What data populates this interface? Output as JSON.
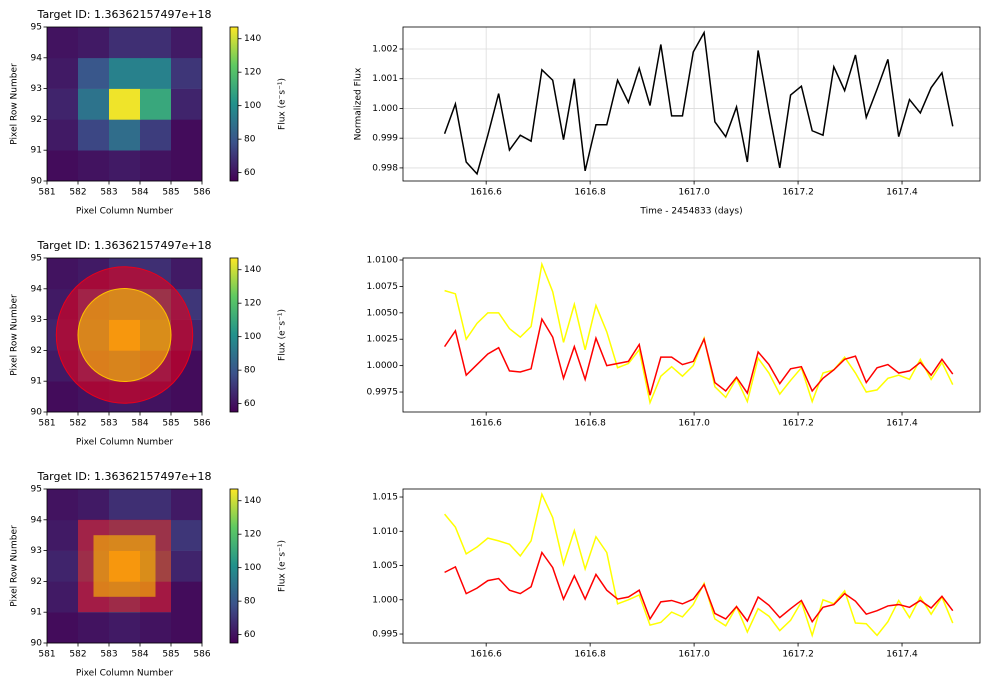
{
  "chart_data": [
    {
      "type": "heatmap",
      "title": "Target ID: 1.36362157497e+18",
      "xlabel": "Pixel Column Number",
      "ylabel": "Pixel Row Number",
      "xlim": [
        581,
        586
      ],
      "ylim": [
        90,
        95
      ],
      "xticks": [
        581,
        582,
        583,
        584,
        585,
        586
      ],
      "yticks": [
        90,
        91,
        92,
        93,
        94,
        95
      ],
      "colormap": "viridis",
      "values": [
        [
          58,
          60,
          62,
          60,
          58
        ],
        [
          62,
          75,
          88,
          72,
          58
        ],
        [
          65,
          90,
          145,
          110,
          65
        ],
        [
          62,
          80,
          95,
          95,
          70
        ],
        [
          60,
          62,
          68,
          68,
          62
        ]
      ],
      "colorbar": {
        "label": "Flux (e⁻s⁻¹)",
        "lim": [
          55,
          147
        ],
        "ticks": [
          60,
          80,
          100,
          120,
          140
        ]
      }
    },
    {
      "type": "line",
      "xlabel": "Time - 2454833 (days)",
      "ylabel": "Normalized Flux",
      "grid": true,
      "xlim": [
        1616.44,
        1617.55
      ],
      "ylim": [
        0.99756,
        1.00274
      ],
      "xticks": [
        1616.6,
        1616.8,
        {
          "value": 1617,
          "label": "1617.0"
        },
        1617.2,
        1617.4
      ],
      "yticks": [
        0.998,
        0.999,
        {
          "value": 1,
          "label": "1.000"
        },
        1.001,
        1.002
      ],
      "x": [
        1616.52,
        1616.5408,
        1616.5616,
        1616.5824,
        1616.6032,
        1616.624,
        1616.6448,
        1616.6656,
        1616.6864,
        1616.7072,
        1616.728,
        1616.7488,
        1616.7696,
        1616.7904,
        1616.8112,
        1616.832,
        1616.8528,
        1616.8736,
        1616.8944,
        1616.9152,
        1616.936,
        1616.9568,
        1616.9776,
        1616.9984,
        1617.0192,
        1617.04,
        1617.0608,
        1617.0816,
        1617.1024,
        1617.1232,
        1617.144,
        1617.1648,
        1617.1856,
        1617.2064,
        1617.2272,
        1617.248,
        1617.2688,
        1617.2896,
        1617.3104,
        1617.3312,
        1617.352,
        1617.3728,
        1617.3936,
        1617.4144,
        1617.4352,
        1617.456,
        1617.4768,
        1617.4976
      ],
      "series": [
        {
          "color": "#000000",
          "values": [
            0.99915,
            1.00015,
            0.9982,
            0.9978,
            0.9991,
            1.0005,
            0.9986,
            0.9991,
            0.9989,
            1.0013,
            1.00095,
            0.99895,
            1.001,
            0.9979,
            0.99945,
            0.99945,
            1.00095,
            1.0002,
            1.00135,
            1.0001,
            1.00215,
            0.99975,
            0.99975,
            1.0019,
            1.00255,
            0.99955,
            0.99905,
            1.00005,
            0.9982,
            1.00195,
            0.9999,
            0.998,
            1.00045,
            1.00075,
            0.99925,
            0.9991,
            1.0014,
            1.0006,
            1.0018,
            0.9997,
            1.00065,
            1.00165,
            0.99905,
            1.0003,
            0.99985,
            1.0007,
            1.0012,
            0.9994
          ]
        }
      ]
    },
    {
      "type": "heatmap",
      "title": "Target ID: 1.36362157497e+18",
      "xlabel": "Pixel Column Number",
      "ylabel": "Pixel Row Number",
      "xlim": [
        581,
        586
      ],
      "ylim": [
        90,
        95
      ],
      "xticks": [
        581,
        582,
        583,
        584,
        585,
        586
      ],
      "yticks": [
        90,
        91,
        92,
        93,
        94,
        95
      ],
      "colormap": "viridis",
      "values": [
        [
          58,
          60,
          62,
          60,
          58
        ],
        [
          62,
          75,
          88,
          72,
          58
        ],
        [
          65,
          90,
          145,
          110,
          65
        ],
        [
          62,
          80,
          95,
          95,
          70
        ],
        [
          60,
          62,
          68,
          68,
          62
        ]
      ],
      "colorbar": {
        "label": "Flux (e⁻s⁻¹)",
        "lim": [
          55,
          147
        ],
        "ticks": [
          60,
          80,
          100,
          120,
          140
        ]
      },
      "apertures": [
        {
          "shape": "circle",
          "center": [
            583.5,
            92.5
          ],
          "radius": 2.2,
          "color": "#e8001c"
        },
        {
          "shape": "circle",
          "center": [
            583.5,
            92.5
          ],
          "radius": 1.5,
          "color": "#ffc000"
        }
      ]
    },
    {
      "type": "line",
      "grid": false,
      "xlim": [
        1616.44,
        1617.55
      ],
      "ylim": [
        0.99561,
        1.01019
      ],
      "xticks": [
        1616.6,
        1616.8,
        {
          "value": 1617,
          "label": "1617.0"
        },
        1617.2,
        1617.4
      ],
      "yticks": [
        0.9975,
        {
          "value": 1,
          "label": "1.0000"
        },
        1.0025,
        {
          "value": 1.005,
          "label": "1.0050"
        },
        1.0075,
        {
          "value": 1.01,
          "label": "1.0100"
        }
      ],
      "x": [
        1616.52,
        1616.5408,
        1616.5616,
        1616.5824,
        1616.6032,
        1616.624,
        1616.6448,
        1616.6656,
        1616.6864,
        1616.7072,
        1616.728,
        1616.7488,
        1616.7696,
        1616.7904,
        1616.8112,
        1616.832,
        1616.8528,
        1616.8736,
        1616.8944,
        1616.9152,
        1616.936,
        1616.9568,
        1616.9776,
        1616.9984,
        1617.0192,
        1617.04,
        1617.0608,
        1617.0816,
        1617.1024,
        1617.1232,
        1617.144,
        1617.1648,
        1617.1856,
        1617.2064,
        1617.2272,
        1617.248,
        1617.2688,
        1617.2896,
        1617.3104,
        1617.3312,
        1617.352,
        1617.3728,
        1617.3936,
        1617.4144,
        1617.4352,
        1617.456,
        1617.4768,
        1617.4976
      ],
      "series": [
        {
          "color": "#ffff00",
          "values": [
            1.0071,
            1.0068,
            1.0025,
            1.004,
            1.005,
            1.005,
            1.0035,
            1.0027,
            1.0037,
            1.0096,
            1.007,
            1.0022,
            1.0058,
            1.0015,
            1.0057,
            1.0032,
            0.9998,
            1.0002,
            1.0015,
            0.9965,
            0.999,
            0.9999,
            0.999,
            1,
            1.0026,
            0.998,
            0.997,
            0.9988,
            0.9966,
            1.0007,
            0.9993,
            0.9973,
            0.9986,
            0.9998,
            0.9966,
            0.9993,
            0.9996,
            1.0008,
            0.9993,
            0.9975,
            0.9977,
            0.9988,
            0.9991,
            0.9987,
            1.0006,
            0.9987,
            1.0003,
            0.9982
          ]
        },
        {
          "color": "#ff0000",
          "values": [
            1.0018,
            1.0033,
            0.9991,
            1.0001,
            1.0011,
            1.0017,
            0.9995,
            0.9994,
            0.9997,
            1.0044,
            1.0027,
            0.9988,
            1.0018,
            0.9987,
            1.0026,
            1,
            1.0002,
            1.0004,
            1.002,
            0.9972,
            1.0008,
            1.0008,
            1.0001,
            1.0004,
            1.0025,
            0.9984,
            0.9976,
            0.9989,
            0.9974,
            1.0013,
            1.0001,
            0.9983,
            0.9997,
            0.9999,
            0.9976,
            0.9988,
            0.9996,
            1.0006,
            1.0009,
            0.9984,
            0.9998,
            1.0001,
            0.9993,
            0.9995,
            1.0003,
            0.9991,
            1.0006,
            0.9992
          ]
        }
      ]
    },
    {
      "type": "heatmap",
      "title": "Target ID: 1.36362157497e+18",
      "xlabel": "Pixel Column Number",
      "ylabel": "Pixel Row Number",
      "xlim": [
        581,
        586
      ],
      "ylim": [
        90,
        95
      ],
      "xticks": [
        581,
        582,
        583,
        584,
        585,
        586
      ],
      "yticks": [
        90,
        91,
        92,
        93,
        94,
        95
      ],
      "colormap": "viridis",
      "values": [
        [
          58,
          60,
          62,
          60,
          58
        ],
        [
          62,
          75,
          88,
          72,
          58
        ],
        [
          65,
          90,
          145,
          110,
          65
        ],
        [
          62,
          80,
          95,
          95,
          70
        ],
        [
          60,
          62,
          68,
          68,
          62
        ]
      ],
      "colorbar": {
        "label": "Flux (e⁻s⁻¹)",
        "lim": [
          55,
          147
        ],
        "ticks": [
          60,
          80,
          100,
          120,
          140
        ]
      },
      "apertures": [
        {
          "shape": "rect",
          "xlim": [
            582,
            585
          ],
          "ylim": [
            91,
            94
          ],
          "color": "#e8001c"
        },
        {
          "shape": "rect",
          "xlim": [
            582.5,
            584.5
          ],
          "ylim": [
            91.5,
            93.5
          ],
          "color": "#ffc000"
        }
      ]
    },
    {
      "type": "line",
      "grid": false,
      "xlim": [
        1616.44,
        1617.55
      ],
      "ylim": [
        0.99369,
        1.01617
      ],
      "xticks": [
        1616.6,
        1616.8,
        {
          "value": 1617,
          "label": "1617.0"
        },
        1617.2,
        1617.4
      ],
      "yticks": [
        0.995,
        {
          "value": 1,
          "label": "1.000"
        },
        1.005,
        {
          "value": 1.01,
          "label": "1.010"
        },
        1.015
      ],
      "x": [
        1616.52,
        1616.5408,
        1616.5616,
        1616.5824,
        1616.6032,
        1616.624,
        1616.6448,
        1616.6656,
        1616.6864,
        1616.7072,
        1616.728,
        1616.7488,
        1616.7696,
        1616.7904,
        1616.8112,
        1616.832,
        1616.8528,
        1616.8736,
        1616.8944,
        1616.9152,
        1616.936,
        1616.9568,
        1616.9776,
        1616.9984,
        1617.0192,
        1617.04,
        1617.0608,
        1617.0816,
        1617.1024,
        1617.1232,
        1617.144,
        1617.1648,
        1617.1856,
        1617.2064,
        1617.2272,
        1617.248,
        1617.2688,
        1617.2896,
        1617.3104,
        1617.3312,
        1617.352,
        1617.3728,
        1617.3936,
        1617.4144,
        1617.4352,
        1617.456,
        1617.4768,
        1617.4976
      ],
      "series": [
        {
          "color": "#ffff00",
          "values": [
            1.0125,
            1.0106,
            1.0067,
            1.0077,
            1.009,
            1.0086,
            1.0081,
            1.0064,
            1.0086,
            1.0154,
            1.012,
            1.0052,
            1.0101,
            1.0045,
            1.0092,
            1.0069,
            0.9994,
            1,
            1.0007,
            0.9963,
            0.9967,
            0.9982,
            0.9975,
            0.9993,
            1.0024,
            0.9972,
            0.9962,
            0.999,
            0.9953,
            0.9987,
            0.9976,
            0.9955,
            0.997,
            0.9997,
            0.9948,
            1,
            0.9994,
            1.0013,
            0.9966,
            0.9965,
            0.9948,
            0.9968,
            0.9999,
            0.9974,
            1.0004,
            0.9979,
            1.0004,
            0.9966
          ]
        },
        {
          "color": "#ff0000",
          "values": [
            1.004,
            1.0048,
            1.0009,
            1.0017,
            1.0028,
            1.0031,
            1.0014,
            1.0009,
            1.0019,
            1.0069,
            1.0047,
            1.0001,
            1.0035,
            1.0001,
            1.0037,
            1.0014,
            1.0001,
            1.0004,
            1.0014,
            0.9972,
            0.9997,
            0.9999,
            0.9994,
            1.0001,
            1.0022,
            0.998,
            0.9972,
            0.999,
            0.9969,
            1.0004,
            0.9992,
            0.9974,
            0.9987,
            0.9999,
            0.9968,
            0.9989,
            0.9993,
            1.0009,
            0.9998,
            0.9979,
            0.9984,
            0.9991,
            0.9993,
            0.9989,
            0.9999,
            0.9988,
            1.0005,
            0.9984
          ]
        }
      ]
    }
  ]
}
